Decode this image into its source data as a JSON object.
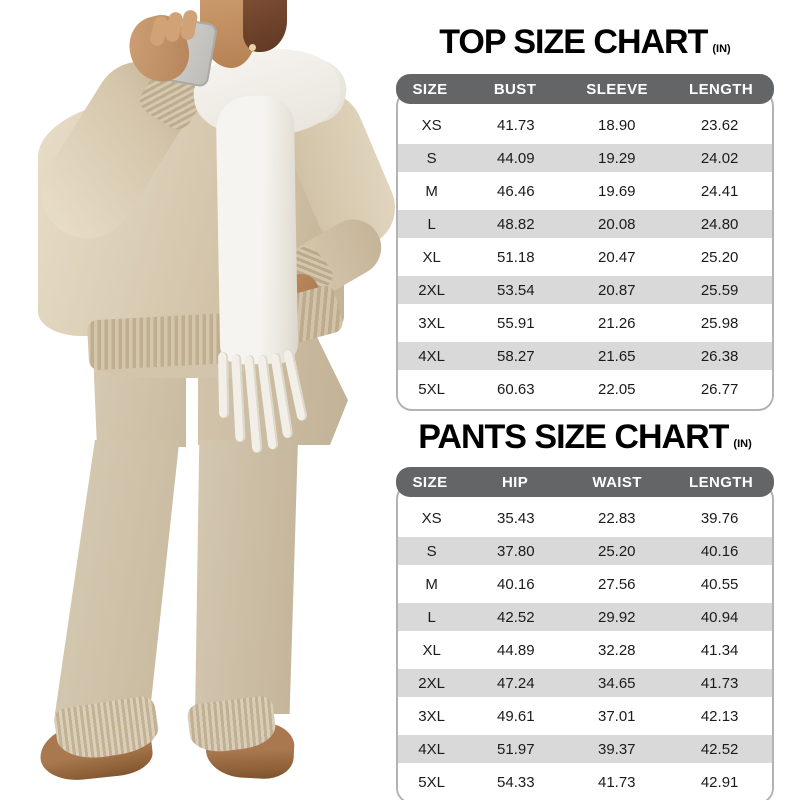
{
  "chart_data": [
    {
      "type": "table",
      "title": "TOP SIZE CHART",
      "unit": "(IN)",
      "columns": [
        "SIZE",
        "BUST",
        "SLEEVE",
        "LENGTH"
      ],
      "rows": [
        [
          "XS",
          "41.73",
          "18.90",
          "23.62"
        ],
        [
          "S",
          "44.09",
          "19.29",
          "24.02"
        ],
        [
          "M",
          "46.46",
          "19.69",
          "24.41"
        ],
        [
          "L",
          "48.82",
          "20.08",
          "24.80"
        ],
        [
          "XL",
          "51.18",
          "20.47",
          "25.20"
        ],
        [
          "2XL",
          "53.54",
          "20.87",
          "25.59"
        ],
        [
          "3XL",
          "55.91",
          "21.26",
          "25.98"
        ],
        [
          "4XL",
          "58.27",
          "21.65",
          "26.38"
        ],
        [
          "5XL",
          "60.63",
          "22.05",
          "26.77"
        ]
      ]
    },
    {
      "type": "table",
      "title": "PANTS SIZE CHART",
      "unit": "(IN)",
      "columns": [
        "SIZE",
        "HIP",
        "WAIST",
        "LENGTH"
      ],
      "rows": [
        [
          "XS",
          "35.43",
          "22.83",
          "39.76"
        ],
        [
          "S",
          "37.80",
          "25.20",
          "40.16"
        ],
        [
          "M",
          "40.16",
          "27.56",
          "40.55"
        ],
        [
          "L",
          "42.52",
          "29.92",
          "40.94"
        ],
        [
          "XL",
          "44.89",
          "32.28",
          "41.34"
        ],
        [
          "2XL",
          "47.24",
          "34.65",
          "41.73"
        ],
        [
          "3XL",
          "49.61",
          "37.01",
          "42.13"
        ],
        [
          "4XL",
          "51.97",
          "39.37",
          "42.52"
        ],
        [
          "5XL",
          "54.33",
          "41.73",
          "42.91"
        ]
      ]
    }
  ],
  "colors": {
    "header_bg": "#646567",
    "header_text": "#ffffff",
    "stripe_bg": "#d9d9d9",
    "table_border": "#b3b3b3",
    "title_text": "#000000",
    "cell_text": "#1b1b1b",
    "sweater": "#d7c9b0",
    "pants": "#cfc2aa",
    "scarf": "#f6f4f0",
    "skin": "#b58153",
    "hair": "#7c4e34",
    "phone": "#bdbcb8",
    "shoes": "#a9784e"
  }
}
